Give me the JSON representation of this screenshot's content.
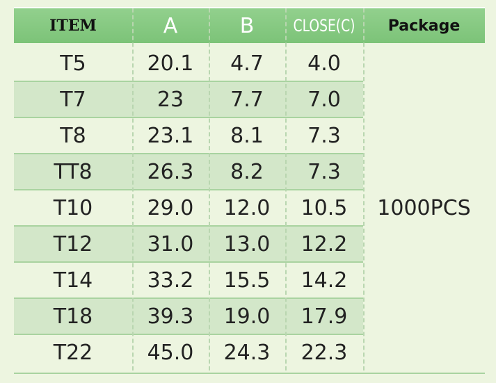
{
  "table": {
    "header": [
      "ITEM",
      "A",
      "B",
      "CLOSE(C)",
      "Package"
    ],
    "rows": [
      [
        "T5",
        "20.1",
        "4.7",
        "4.0"
      ],
      [
        "T7",
        "23",
        "7.7",
        "7.0"
      ],
      [
        "T8",
        "23.1",
        "8.1",
        "7.3"
      ],
      [
        "TT8",
        "26.3",
        "8.2",
        "7.3"
      ],
      [
        "T10",
        "29.0",
        "12.0",
        "10.5"
      ],
      [
        "T12",
        "31.0",
        "13.0",
        "12.2"
      ],
      [
        "T14",
        "33.2",
        "15.5",
        "14.2"
      ],
      [
        "T18",
        "39.3",
        "19.0",
        "17.9"
      ],
      [
        "T22",
        "45.0",
        "24.3",
        "22.3"
      ]
    ],
    "package": "1000PCS"
  }
}
